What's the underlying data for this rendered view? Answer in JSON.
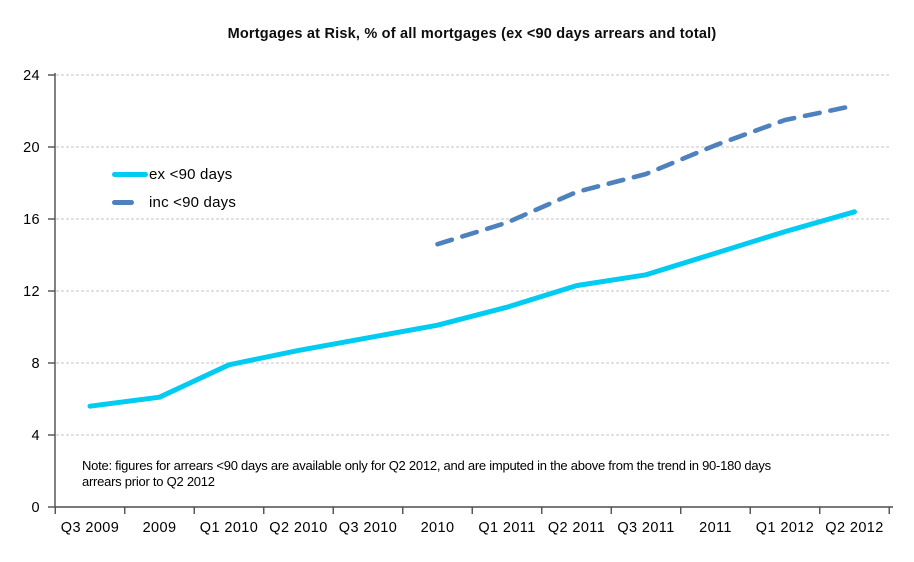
{
  "chart_data": {
    "type": "line",
    "title": "Mortgages at Risk, % of all mortgages (ex <90 days arrears and total)",
    "categories": [
      "Q3 2009",
      "2009",
      "Q1 2010",
      "Q2 2010",
      "Q3 2010",
      "2010",
      "Q1 2011",
      "Q2 2011",
      "Q3 2011",
      "2011",
      "Q1 2012",
      "Q2 2012"
    ],
    "series": [
      {
        "name": "ex <90 days",
        "style": "solid",
        "color": "#00CBF1",
        "values": [
          5.6,
          6.1,
          7.9,
          8.7,
          9.4,
          10.1,
          11.1,
          12.3,
          12.9,
          14.1,
          15.3,
          16.4
        ]
      },
      {
        "name": "inc <90 days",
        "style": "dashed",
        "color": "#4F81BD",
        "values": [
          null,
          null,
          null,
          null,
          null,
          14.6,
          15.8,
          17.5,
          18.5,
          20.1,
          21.5,
          22.3
        ]
      }
    ],
    "xlabel": "",
    "ylabel": "",
    "ylim": [
      0,
      24
    ],
    "yticks": [
      0,
      4,
      8,
      12,
      16,
      20,
      24
    ],
    "grid": "horizontal-dashed",
    "legend_position": "inside-top-left",
    "note_lines": [
      "Note: figures for arrears <90 days are available only for Q2 2012, and are imputed in the above from the trend in 90-180 days",
      "arrears prior to Q2 2012"
    ],
    "colors": {
      "axis": "#4d4d4d",
      "gridline": "#D9D9D9",
      "text": "#000000",
      "background": "#FFFFFF"
    }
  }
}
